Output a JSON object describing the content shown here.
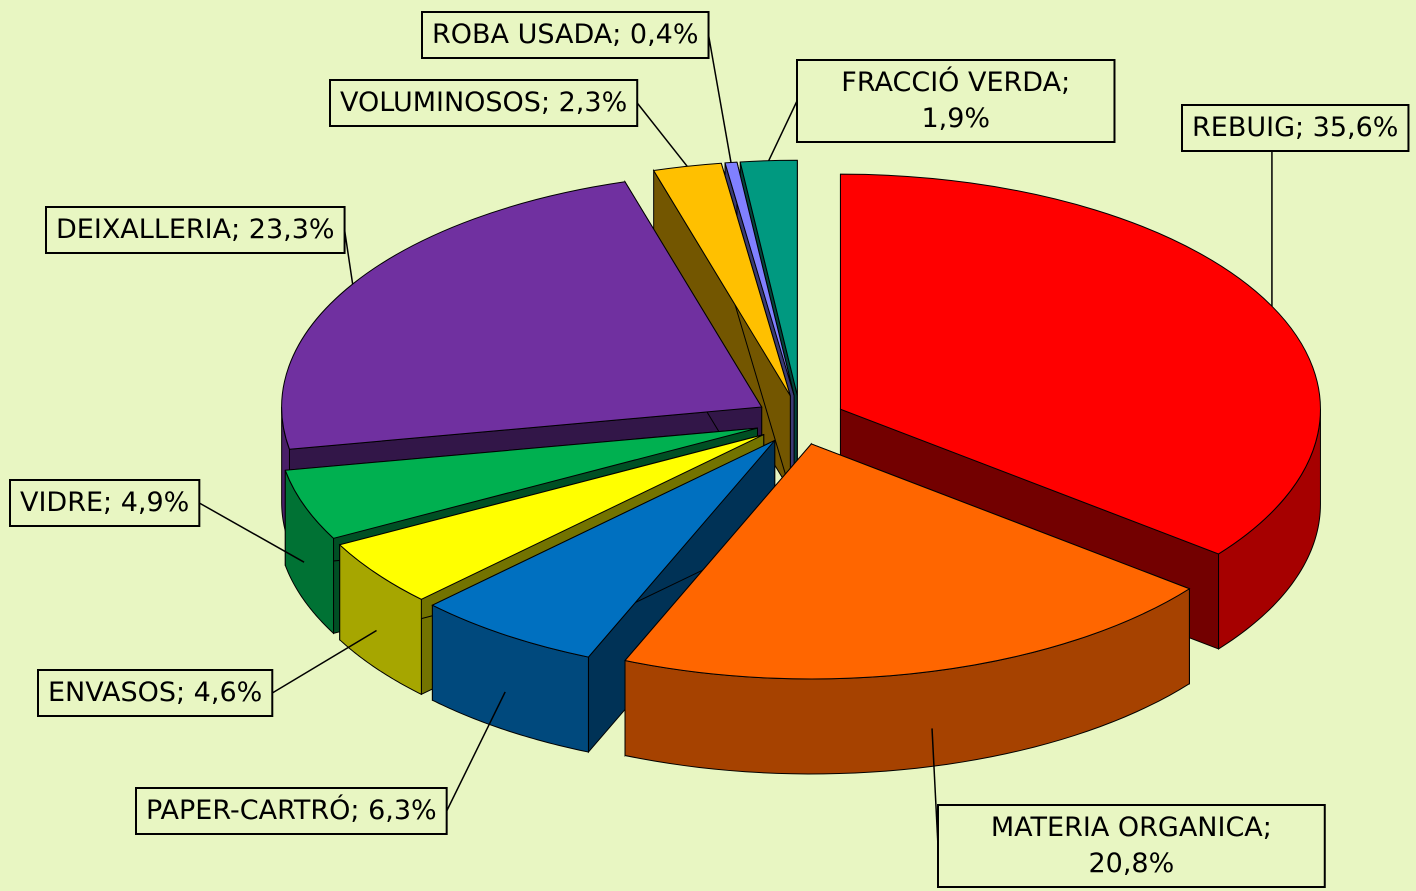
{
  "chart_data": {
    "type": "pie3d",
    "values": [
      35.6,
      20.8,
      6.3,
      4.6,
      4.9,
      23.3,
      2.3,
      0.4,
      1.9
    ],
    "value_labels": [
      "REBUIG; 35,6%",
      "MATERIA ORGANICA;\n20,8%",
      "PAPER-CARTRÓ; 6,3%",
      "ENVASOS; 4,6%",
      "VIDRE; 4,9%",
      "DEIXALLERIA; 23,3%",
      "VOLUMINOSOS; 2,3%",
      "ROBA USADA; 0,4%",
      "FRACCIÓ VERDA;\n1,9%"
    ],
    "colors": [
      "#ff0000",
      "#ff6600",
      "#0070c0",
      "#ffff00",
      "#00b050",
      "#7030a0",
      "#ffc000",
      "#8080ff",
      "#009980"
    ],
    "explode": true
  }
}
